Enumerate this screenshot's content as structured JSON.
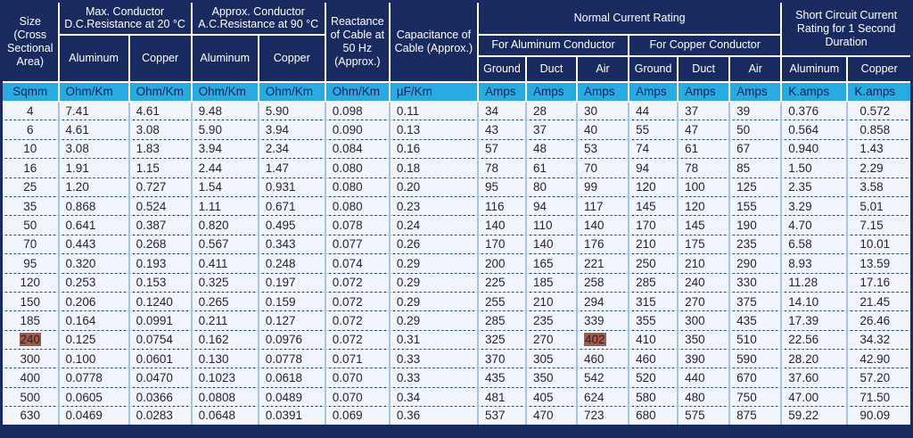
{
  "header": {
    "size": "Size (Cross Sectional Area)",
    "dc_resistance": "Max. Conductor D.C.Resistance at 20 °C",
    "ac_resistance": "Approx. Conductor A.C.Resistance at 90 °C",
    "reactance": "Reactance of Cable at 50 Hz (Approx.)",
    "capacitance": "Capacitance of Cable (Approx.)",
    "normal_current_rating": "Normal Current Rating",
    "for_aluminum_conductor": "For Aluminum Conductor",
    "for_copper_conductor": "For Copper Conductor",
    "short_circuit": "Short Circuit Current Rating for 1 Second Duration",
    "aluminum": "Aluminum",
    "copper": "Copper",
    "ground": "Ground",
    "duct": "Duct",
    "air": "Air"
  },
  "units": [
    "Sqmm",
    "Ohm/Km",
    "Ohm/Km",
    "Ohm/Km",
    "Ohm/Km",
    "Ohm/Km",
    "µF/Km",
    "Amps",
    "Amps",
    "Amps",
    "Amps",
    "Amps",
    "Amps",
    "K.amps",
    "K.amps"
  ],
  "rows": [
    [
      "4",
      "7.41",
      "4.61",
      "9.48",
      "5.90",
      "0.098",
      "0.11",
      "34",
      "28",
      "30",
      "44",
      "37",
      "39",
      "0.376",
      "0.572"
    ],
    [
      "6",
      "4.61",
      "3.08",
      "5.90",
      "3.94",
      "0.090",
      "0.13",
      "43",
      "37",
      "40",
      "55",
      "47",
      "50",
      "0.564",
      "0.858"
    ],
    [
      "10",
      "3.08",
      "1.83",
      "3.94",
      "2.34",
      "0.084",
      "0.16",
      "57",
      "48",
      "53",
      "74",
      "61",
      "67",
      "0.940",
      "1.43"
    ],
    [
      "16",
      "1.91",
      "1.15",
      "2.44",
      "1.47",
      "0.080",
      "0.18",
      "78",
      "61",
      "70",
      "94",
      "78",
      "85",
      "1.50",
      "2.29"
    ],
    [
      "25",
      "1.20",
      "0.727",
      "1.54",
      "0.931",
      "0.080",
      "0.20",
      "95",
      "80",
      "99",
      "120",
      "100",
      "125",
      "2.35",
      "3.58"
    ],
    [
      "35",
      "0.868",
      "0.524",
      "1.11",
      "0.671",
      "0.080",
      "0.23",
      "116",
      "94",
      "117",
      "145",
      "120",
      "155",
      "3.29",
      "5.01"
    ],
    [
      "50",
      "0.641",
      "0.387",
      "0.820",
      "0.495",
      "0.078",
      "0.24",
      "140",
      "110",
      "140",
      "170",
      "145",
      "190",
      "4.70",
      "7.15"
    ],
    [
      "70",
      "0.443",
      "0.268",
      "0.567",
      "0.343",
      "0.077",
      "0.26",
      "170",
      "140",
      "176",
      "210",
      "175",
      "235",
      "6.58",
      "10.01"
    ],
    [
      "95",
      "0.320",
      "0.193",
      "0.411",
      "0.248",
      "0.074",
      "0.29",
      "200",
      "165",
      "221",
      "250",
      "210",
      "290",
      "8.93",
      "13.59"
    ],
    [
      "120",
      "0.253",
      "0.153",
      "0.325",
      "0.197",
      "0.072",
      "0.29",
      "225",
      "185",
      "258",
      "285",
      "240",
      "330",
      "11.28",
      "17.16"
    ],
    [
      "150",
      "0.206",
      "0.1240",
      "0.265",
      "0.159",
      "0.072",
      "0.29",
      "255",
      "210",
      "294",
      "315",
      "270",
      "375",
      "14.10",
      "21.45"
    ],
    [
      "185",
      "0.164",
      "0.0991",
      "0.211",
      "0.127",
      "0.072",
      "0.29",
      "285",
      "235",
      "339",
      "355",
      "300",
      "435",
      "17.39",
      "26.46"
    ],
    [
      "240",
      "0.125",
      "0.0754",
      "0.162",
      "0.0976",
      "0.072",
      "0.31",
      "325",
      "270",
      "402",
      "410",
      "350",
      "510",
      "22.56",
      "34.32"
    ],
    [
      "300",
      "0.100",
      "0.0601",
      "0.130",
      "0.0778",
      "0.071",
      "0.33",
      "370",
      "305",
      "460",
      "460",
      "390",
      "590",
      "28.20",
      "42.90"
    ],
    [
      "400",
      "0.0778",
      "0.0470",
      "0.1023",
      "0.0618",
      "0.070",
      "0.33",
      "435",
      "350",
      "542",
      "520",
      "440",
      "670",
      "37.60",
      "57.20"
    ],
    [
      "500",
      "0.0605",
      "0.0366",
      "0.0808",
      "0.0489",
      "0.070",
      "0.34",
      "481",
      "405",
      "624",
      "580",
      "480",
      "750",
      "47.00",
      "71.50"
    ],
    [
      "630",
      "0.0469",
      "0.0283",
      "0.0648",
      "0.0391",
      "0.069",
      "0.36",
      "537",
      "470",
      "723",
      "680",
      "575",
      "875",
      "59.22",
      "90.09"
    ]
  ],
  "highlighted_cells": [
    [
      12,
      0
    ],
    [
      12,
      9
    ]
  ],
  "colors": {
    "header_bg": "#192a60",
    "units_bg": "#29abe2",
    "units_text": "#0e255e",
    "row_bg": "#f2f6fc",
    "grid_line": "#a3c6e8",
    "highlight_bg": "#a65a44"
  }
}
